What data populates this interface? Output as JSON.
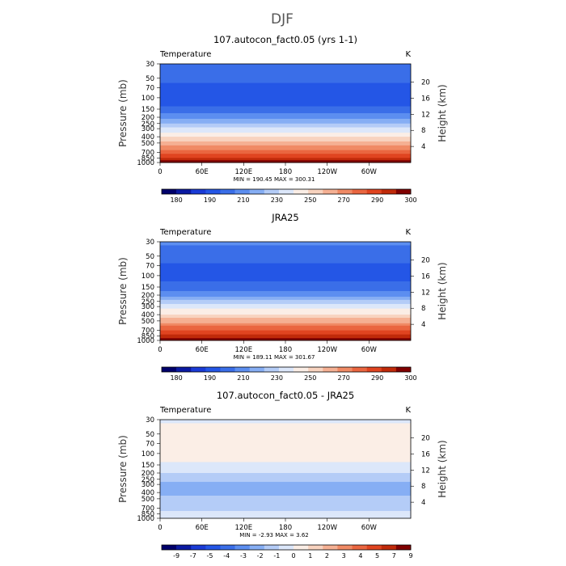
{
  "figure": {
    "title": "DJF"
  },
  "chart_data": [
    {
      "type": "heatmap",
      "title": "107.autocon_fact0.05 (yrs 1-1)",
      "field_label": "Temperature",
      "units": "K",
      "ylabel": "Pressure (mb)",
      "y2label": "Height (km)",
      "xticks": [
        "0",
        "60E",
        "120E",
        "180",
        "120W",
        "60W"
      ],
      "xtick_lon": [
        0,
        60,
        120,
        180,
        240,
        300
      ],
      "xlim": [
        0,
        360
      ],
      "yticks": [
        "30",
        "50",
        "70",
        "100",
        "150",
        "200",
        "250",
        "300",
        "400",
        "500",
        "700",
        "850",
        "1000"
      ],
      "ytick_p": [
        30,
        50,
        70,
        100,
        150,
        200,
        250,
        300,
        400,
        500,
        700,
        850,
        1000
      ],
      "ylim": [
        30,
        1000
      ],
      "y_log": true,
      "y2ticks": [
        "20",
        "16",
        "12",
        "8",
        "4"
      ],
      "y2tick_km": [
        20,
        16,
        12,
        8,
        4
      ],
      "min_max_text": "MIN = 190.45 MAX = 300.31",
      "colorbar": {
        "labels": [
          "180",
          "190",
          "210",
          "230",
          "250",
          "270",
          "290",
          "300"
        ],
        "colors": [
          "#00006b",
          "#0b1aa2",
          "#1a3bd6",
          "#2456e6",
          "#3a6ee8",
          "#5c8ef0",
          "#86aef4",
          "#b4ccf7",
          "#dce7fa",
          "#fbeee6",
          "#f8d3bf",
          "#f5b093",
          "#f08a65",
          "#ea6640",
          "#e04420",
          "#c02a0a",
          "#800000"
        ]
      },
      "profile": [
        {
          "p": 30,
          "value": 214
        },
        {
          "p": 50,
          "value": 210
        },
        {
          "p": 70,
          "value": 206
        },
        {
          "p": 100,
          "value": 205
        },
        {
          "p": 150,
          "value": 210
        },
        {
          "p": 200,
          "value": 220
        },
        {
          "p": 250,
          "value": 230
        },
        {
          "p": 300,
          "value": 238
        },
        {
          "p": 400,
          "value": 250
        },
        {
          "p": 500,
          "value": 260
        },
        {
          "p": 700,
          "value": 276
        },
        {
          "p": 850,
          "value": 286
        },
        {
          "p": 1000,
          "value": 298
        }
      ]
    },
    {
      "type": "heatmap",
      "title": "JRA25",
      "field_label": "Temperature",
      "units": "K",
      "ylabel": "Pressure (mb)",
      "y2label": "Height (km)",
      "xticks": [
        "0",
        "60E",
        "120E",
        "180",
        "120W",
        "60W"
      ],
      "xtick_lon": [
        0,
        60,
        120,
        180,
        240,
        300
      ],
      "xlim": [
        0,
        360
      ],
      "yticks": [
        "30",
        "50",
        "70",
        "100",
        "150",
        "200",
        "250",
        "300",
        "400",
        "500",
        "700",
        "850",
        "1000"
      ],
      "ytick_p": [
        30,
        50,
        70,
        100,
        150,
        200,
        250,
        300,
        400,
        500,
        700,
        850,
        1000
      ],
      "ylim": [
        30,
        1000
      ],
      "y_log": true,
      "y2ticks": [
        "20",
        "16",
        "12",
        "8",
        "4"
      ],
      "y2tick_km": [
        20,
        16,
        12,
        8,
        4
      ],
      "min_max_text": "MIN = 189.11 MAX = 301.67",
      "colorbar": {
        "labels": [
          "180",
          "190",
          "210",
          "230",
          "250",
          "270",
          "290",
          "300"
        ],
        "colors": [
          "#00006b",
          "#0b1aa2",
          "#1a3bd6",
          "#2456e6",
          "#3a6ee8",
          "#5c8ef0",
          "#86aef4",
          "#b4ccf7",
          "#dce7fa",
          "#fbeee6",
          "#f8d3bf",
          "#f5b093",
          "#f08a65",
          "#ea6640",
          "#e04420",
          "#c02a0a",
          "#800000"
        ]
      },
      "profile": [
        {
          "p": 30,
          "value": 216
        },
        {
          "p": 50,
          "value": 211
        },
        {
          "p": 70,
          "value": 207
        },
        {
          "p": 100,
          "value": 204
        },
        {
          "p": 150,
          "value": 211
        },
        {
          "p": 200,
          "value": 221
        },
        {
          "p": 250,
          "value": 231
        },
        {
          "p": 300,
          "value": 240
        },
        {
          "p": 400,
          "value": 252
        },
        {
          "p": 500,
          "value": 262
        },
        {
          "p": 700,
          "value": 278
        },
        {
          "p": 850,
          "value": 288
        },
        {
          "p": 1000,
          "value": 299
        }
      ]
    },
    {
      "type": "heatmap",
      "title": "107.autocon_fact0.05 - JRA25",
      "field_label": "Temperature",
      "units": "K",
      "ylabel": "Pressure (mb)",
      "y2label": "Height (km)",
      "xticks": [
        "0",
        "60E",
        "120E",
        "180",
        "120W",
        "60W"
      ],
      "xtick_lon": [
        0,
        60,
        120,
        180,
        240,
        300
      ],
      "xlim": [
        0,
        360
      ],
      "yticks": [
        "30",
        "50",
        "70",
        "100",
        "150",
        "200",
        "250",
        "300",
        "400",
        "500",
        "700",
        "850",
        "1000"
      ],
      "ytick_p": [
        30,
        50,
        70,
        100,
        150,
        200,
        250,
        300,
        400,
        500,
        700,
        850,
        1000
      ],
      "ylim": [
        30,
        1000
      ],
      "y_log": true,
      "y2ticks": [
        "20",
        "16",
        "12",
        "8",
        "4"
      ],
      "y2tick_km": [
        20,
        16,
        12,
        8,
        4
      ],
      "min_max_text": "MIN = -2.93 MAX = 3.62",
      "colorbar": {
        "labels": [
          "-9",
          "-7",
          "-5",
          "-4",
          "-3",
          "-2",
          "-1",
          "0",
          "1",
          "2",
          "3",
          "4",
          "5",
          "7",
          "9"
        ],
        "colors": [
          "#00006b",
          "#0b1aa2",
          "#1a3bd6",
          "#2456e6",
          "#3a6ee8",
          "#5c8ef0",
          "#86aef4",
          "#b4ccf7",
          "#dce7fa",
          "#fbeee6",
          "#f8d3bf",
          "#f5b093",
          "#f08a65",
          "#ea6640",
          "#e04420",
          "#c02a0a",
          "#800000"
        ]
      },
      "profile": [
        {
          "p": 30,
          "value": 0.3
        },
        {
          "p": 50,
          "value": 1.2
        },
        {
          "p": 70,
          "value": 1.6
        },
        {
          "p": 100,
          "value": 1.3
        },
        {
          "p": 150,
          "value": 0.2
        },
        {
          "p": 200,
          "value": -0.5
        },
        {
          "p": 250,
          "value": -1.4
        },
        {
          "p": 300,
          "value": -1.8
        },
        {
          "p": 400,
          "value": -1.9
        },
        {
          "p": 500,
          "value": -1.4
        },
        {
          "p": 700,
          "value": -0.8
        },
        {
          "p": 850,
          "value": -0.3
        },
        {
          "p": 1000,
          "value": 0.1
        }
      ]
    }
  ]
}
